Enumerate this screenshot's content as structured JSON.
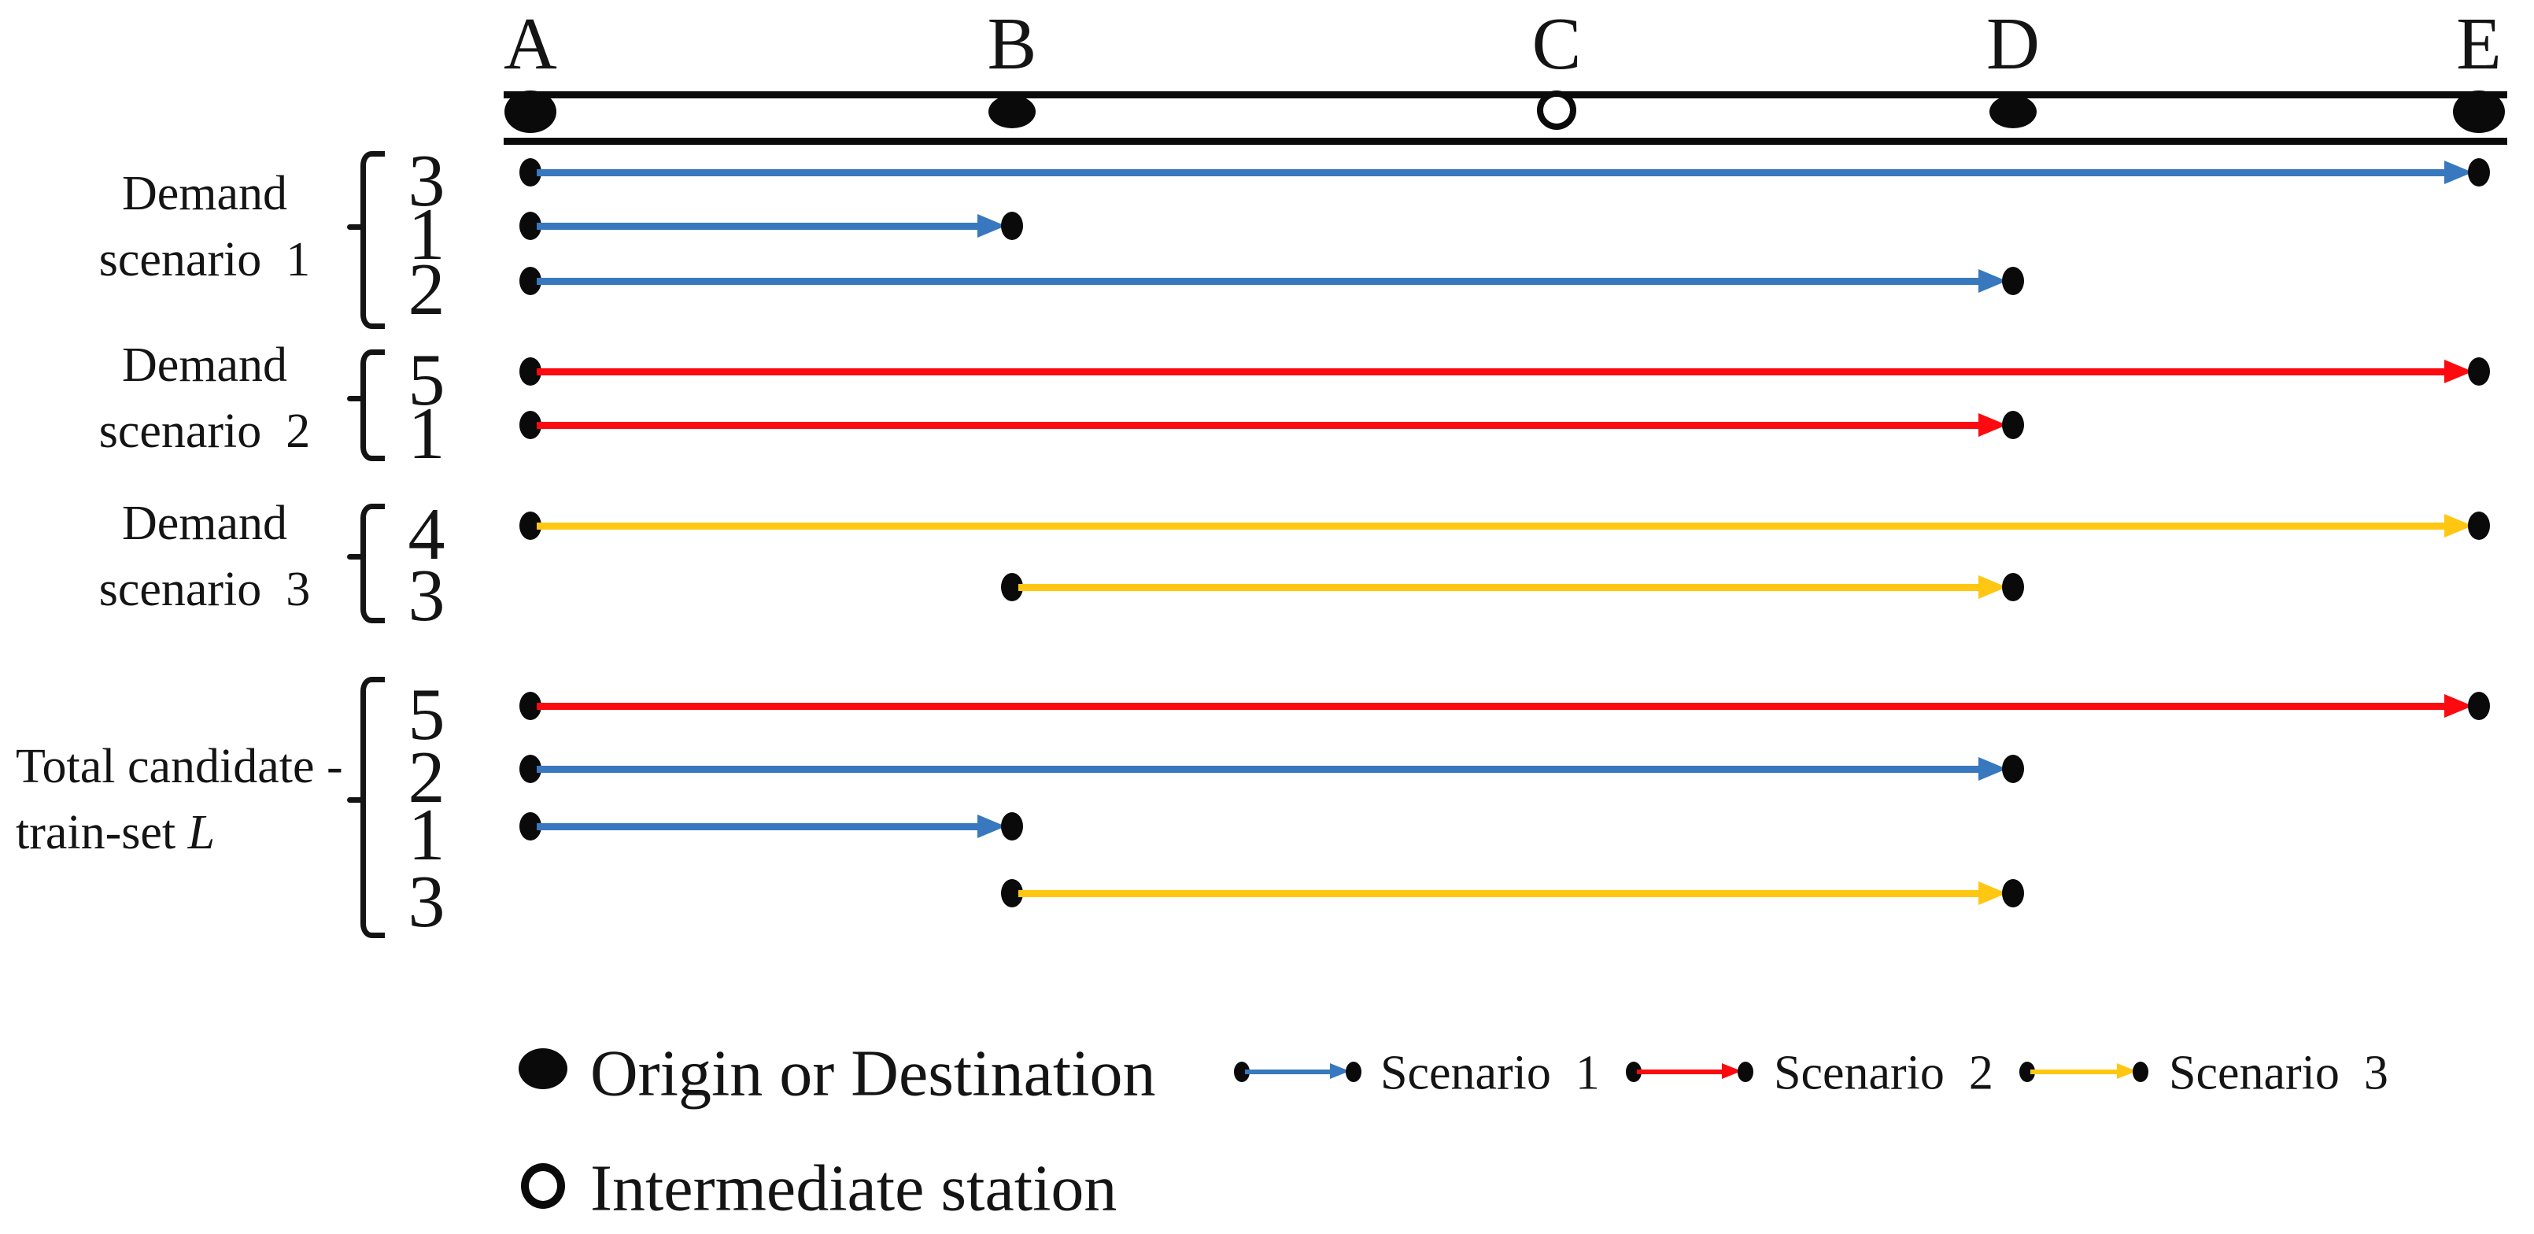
{
  "stations": [
    {
      "name": "A",
      "kind": "endpoint"
    },
    {
      "name": "B",
      "kind": "station"
    },
    {
      "name": "C",
      "kind": "intermediate"
    },
    {
      "name": "D",
      "kind": "station"
    },
    {
      "name": "E",
      "kind": "endpoint"
    }
  ],
  "scenario_colors": {
    "1": "#3878BE",
    "2": "#FB0B0F",
    "3": "#FFC712"
  },
  "groups": [
    {
      "id": "demand-scenario-1",
      "label_lines": [
        "Demand",
        "scenario  1"
      ],
      "rows": [
        {
          "count": "3",
          "from": "A",
          "to": "E",
          "scenario": "1"
        },
        {
          "count": "1",
          "from": "A",
          "to": "B",
          "scenario": "1"
        },
        {
          "count": "2",
          "from": "A",
          "to": "D",
          "scenario": "1"
        }
      ]
    },
    {
      "id": "demand-scenario-2",
      "label_lines": [
        "Demand",
        "scenario  2"
      ],
      "rows": [
        {
          "count": "5",
          "from": "A",
          "to": "E",
          "scenario": "2"
        },
        {
          "count": "1",
          "from": "A",
          "to": "D",
          "scenario": "2"
        }
      ]
    },
    {
      "id": "demand-scenario-3",
      "label_lines": [
        "Demand",
        "scenario  3"
      ],
      "rows": [
        {
          "count": "4",
          "from": "A",
          "to": "E",
          "scenario": "3"
        },
        {
          "count": "3",
          "from": "B",
          "to": "D",
          "scenario": "3"
        }
      ]
    },
    {
      "id": "total-candidate-train-set",
      "label_lines": [
        "Total candidate -",
        "train-set "
      ],
      "label_italic": "L",
      "rows": [
        {
          "count": "5",
          "from": "A",
          "to": "E",
          "scenario": "2"
        },
        {
          "count": "2",
          "from": "A",
          "to": "D",
          "scenario": "1"
        },
        {
          "count": "1",
          "from": "A",
          "to": "B",
          "scenario": "1"
        },
        {
          "count": "3",
          "from": "B",
          "to": "D",
          "scenario": "3"
        }
      ]
    }
  ],
  "legend": {
    "origin_label": "Origin or Destination",
    "intermediate_label": "Intermediate station",
    "scenarios": [
      {
        "label": "Scenario  1",
        "scenario": "1"
      },
      {
        "label": "Scenario  2",
        "scenario": "2"
      },
      {
        "label": "Scenario  3",
        "scenario": "3"
      }
    ]
  }
}
